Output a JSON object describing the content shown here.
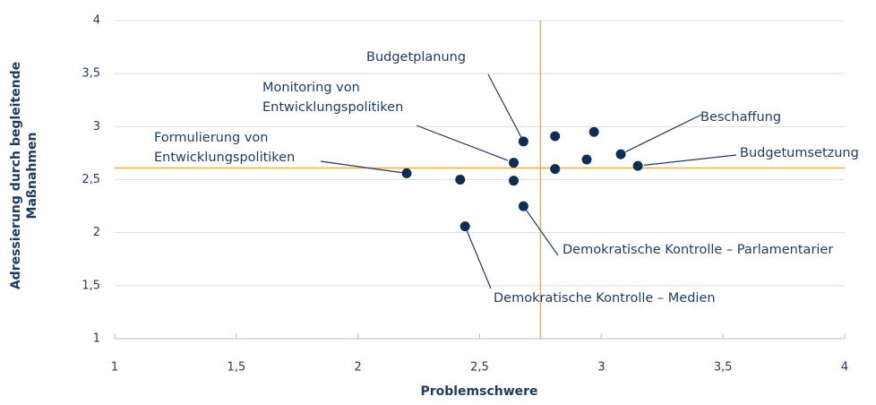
{
  "chart_data": {
    "type": "scatter",
    "xlabel": "Problemschwere",
    "ylabel": "Adressierung durch begleitende Maßnahmen",
    "xlim": [
      1,
      4
    ],
    "xticks": [
      1,
      {
        "value": 1.5,
        "label": "1,5"
      },
      2,
      {
        "value": 2.5,
        "label": "2,5"
      },
      3,
      {
        "value": 3.5,
        "label": "3,5"
      },
      4
    ],
    "ylim": [
      1,
      4
    ],
    "yticks": [
      1,
      {
        "value": 1.5,
        "label": "1,5"
      },
      2,
      {
        "value": 2.5,
        "label": "2,5"
      },
      3,
      {
        "value": 3.5,
        "label": "3,5"
      },
      4
    ],
    "grid": true,
    "xref": 2.75,
    "yref": 2.61,
    "ref_color": "#f2a93b",
    "color": "#0e2d52",
    "x": [
      2.2,
      2.42,
      2.44,
      2.64,
      2.64,
      2.68,
      2.68,
      2.81,
      2.81,
      2.94,
      2.97,
      3.08,
      3.15
    ],
    "y": [
      2.56,
      2.5,
      2.06,
      2.49,
      2.66,
      2.86,
      2.25,
      2.91,
      2.6,
      2.69,
      2.95,
      2.74,
      2.63
    ],
    "labels": [
      "Formulierung von Entwicklungspolitiken",
      null,
      "Demokratische Kontrolle – Medien",
      null,
      "Monitoring von Entwicklungspolitiken",
      "Budgetplanung",
      "Demokratische Kontrolle – Parlamentarier",
      null,
      null,
      null,
      null,
      "Beschaffung",
      "Budgetumsetzung"
    ]
  }
}
